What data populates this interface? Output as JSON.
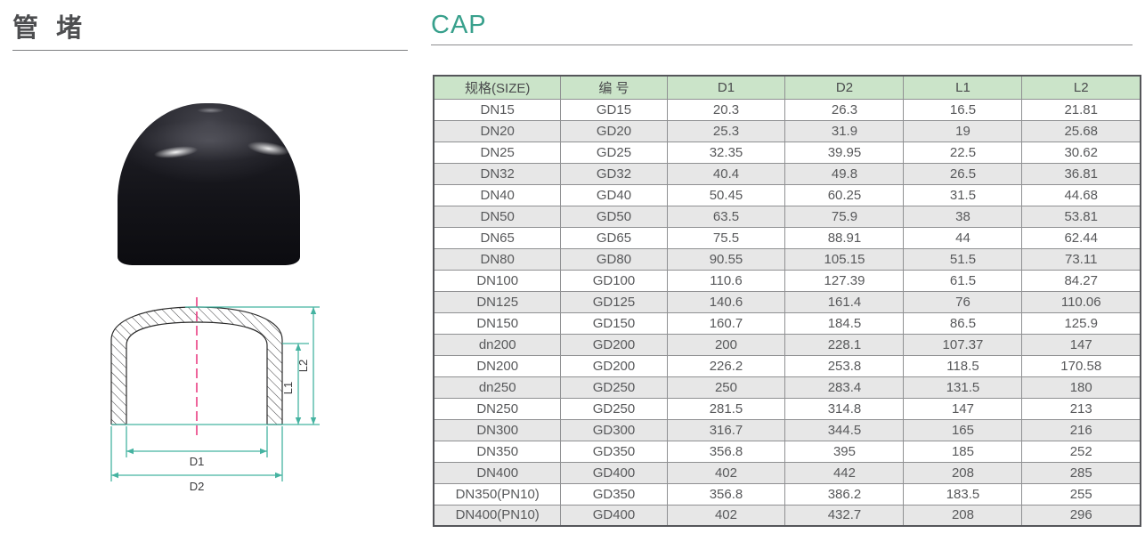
{
  "left": {
    "title": "管 堵",
    "photo_alt": "black-pipe-cap-photo"
  },
  "right": {
    "title": "CAP"
  },
  "diagram": {
    "labels": {
      "d1": "D1",
      "d2": "D2",
      "l1": "L1",
      "l2": "L2"
    },
    "colors": {
      "dimension_line": "#45b3a1",
      "center_line": "#e8307a",
      "outline": "#2a2a2a"
    }
  },
  "table": {
    "header_bg": "#cbe4c9",
    "alt_row_bg": "#e7e7e7",
    "columns": [
      "规格(SIZE)",
      "编 号",
      "D1",
      "D2",
      "L1",
      "L2"
    ],
    "rows": [
      [
        "DN15",
        "GD15",
        "20.3",
        "26.3",
        "16.5",
        "21.81"
      ],
      [
        "DN20",
        "GD20",
        "25.3",
        "31.9",
        "19",
        "25.68"
      ],
      [
        "DN25",
        "GD25",
        "32.35",
        "39.95",
        "22.5",
        "30.62"
      ],
      [
        "DN32",
        "GD32",
        "40.4",
        "49.8",
        "26.5",
        "36.81"
      ],
      [
        "DN40",
        "GD40",
        "50.45",
        "60.25",
        "31.5",
        "44.68"
      ],
      [
        "DN50",
        "GD50",
        "63.5",
        "75.9",
        "38",
        "53.81"
      ],
      [
        "DN65",
        "GD65",
        "75.5",
        "88.91",
        "44",
        "62.44"
      ],
      [
        "DN80",
        "GD80",
        "90.55",
        "105.15",
        "51.5",
        "73.11"
      ],
      [
        "DN100",
        "GD100",
        "110.6",
        "127.39",
        "61.5",
        "84.27"
      ],
      [
        "DN125",
        "GD125",
        "140.6",
        "161.4",
        "76",
        "110.06"
      ],
      [
        "DN150",
        "GD150",
        "160.7",
        "184.5",
        "86.5",
        "125.9"
      ],
      [
        "dn200",
        "GD200",
        "200",
        "228.1",
        "107.37",
        "147"
      ],
      [
        "DN200",
        "GD200",
        "226.2",
        "253.8",
        "118.5",
        "170.58"
      ],
      [
        "dn250",
        "GD250",
        "250",
        "283.4",
        "131.5",
        "180"
      ],
      [
        "DN250",
        "GD250",
        "281.5",
        "314.8",
        "147",
        "213"
      ],
      [
        "DN300",
        "GD300",
        "316.7",
        "344.5",
        "165",
        "216"
      ],
      [
        "DN350",
        "GD350",
        "356.8",
        "395",
        "185",
        "252"
      ],
      [
        "DN400",
        "GD400",
        "402",
        "442",
        "208",
        "285"
      ],
      [
        "DN350(PN10)",
        "GD350",
        "356.8",
        "386.2",
        "183.5",
        "255"
      ],
      [
        "DN400(PN10)",
        "GD400",
        "402",
        "432.7",
        "208",
        "296"
      ]
    ]
  },
  "accent_colors": {
    "title_teal": "#38a08c"
  }
}
